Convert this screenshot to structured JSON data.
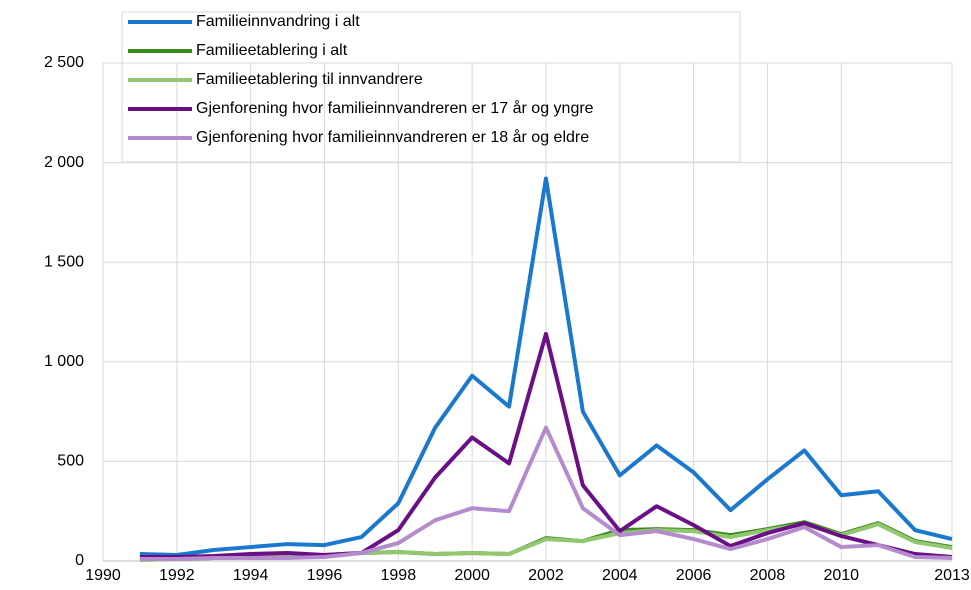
{
  "chart_data": {
    "type": "line",
    "x": [
      1991,
      1992,
      1993,
      1994,
      1995,
      1996,
      1997,
      1998,
      1999,
      2000,
      2001,
      2002,
      2003,
      2004,
      2005,
      2006,
      2007,
      2008,
      2009,
      2010,
      2011,
      2012,
      2013
    ],
    "series": [
      {
        "name": "Familieinnvandring i alt",
        "color": "#1a78cf",
        "values": [
          35,
          30,
          55,
          70,
          85,
          80,
          120,
          290,
          670,
          930,
          775,
          1920,
          750,
          430,
          580,
          445,
          255,
          410,
          555,
          330,
          350,
          155,
          110
        ]
      },
      {
        "name": "Familieetablering i alt",
        "color": "#3b8a1e",
        "values": [
          5,
          10,
          15,
          20,
          20,
          30,
          40,
          45,
          35,
          40,
          35,
          115,
          100,
          155,
          160,
          155,
          130,
          160,
          195,
          135,
          190,
          100,
          70
        ]
      },
      {
        "name": "Familieetablering til innvandrere",
        "color": "#92c76f",
        "values": [
          5,
          10,
          15,
          20,
          20,
          30,
          40,
          45,
          35,
          40,
          35,
          110,
          100,
          140,
          155,
          150,
          120,
          155,
          185,
          130,
          185,
          95,
          65
        ]
      },
      {
        "name": "Gjenforening hvor familieinnvandreren er 17 år og yngre",
        "color": "#6b0f86",
        "values": [
          20,
          20,
          25,
          35,
          40,
          30,
          40,
          155,
          420,
          620,
          490,
          1140,
          380,
          150,
          275,
          180,
          75,
          140,
          190,
          125,
          80,
          35,
          20
        ]
      },
      {
        "name": "Gjenforening hvor familieinnvandreren er 18 år og eldre",
        "color": "#b48bcc",
        "values": [
          10,
          10,
          15,
          15,
          15,
          20,
          40,
          90,
          205,
          265,
          250,
          670,
          265,
          130,
          150,
          110,
          60,
          110,
          170,
          70,
          80,
          20,
          15
        ]
      }
    ],
    "xlim": [
      1990,
      2013
    ],
    "xticks": [
      1990,
      1992,
      1994,
      1996,
      1998,
      2000,
      2002,
      2004,
      2006,
      2008,
      2010,
      2013
    ],
    "ylim": [
      0,
      2500
    ],
    "yticks": [
      0,
      500,
      {
        "value": 1000,
        "label": "1 000"
      },
      {
        "value": 1500,
        "label": "1 500"
      },
      {
        "value": 2000,
        "label": "2 000"
      },
      {
        "value": 2500,
        "label": "2 500"
      }
    ],
    "grid": true,
    "legend": "upper left"
  }
}
